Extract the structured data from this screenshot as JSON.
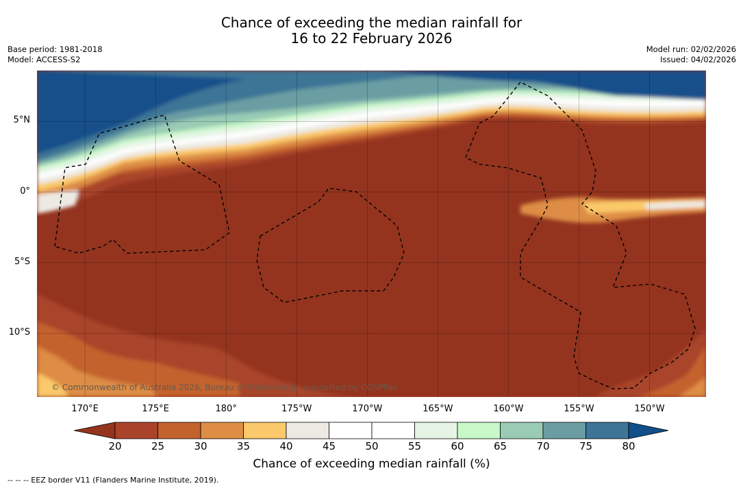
{
  "title": {
    "line1": "Chance of exceeding the median rainfall for",
    "line2": "16 to 22 February 2026"
  },
  "meta": {
    "base_period": "Base period: 1981-2018",
    "model": "Model: ACCESS-S2",
    "model_run": "Model run: 02/02/2026",
    "issued": "Issued: 04/02/2026"
  },
  "map": {
    "credit": "© Commonwealth of Australia 2026, Bureau of Meteorology, supported by COSPPac",
    "lon_ticks": [
      "170°E",
      "175°E",
      "180°",
      "175°W",
      "170°W",
      "165°W",
      "160°W",
      "155°W",
      "150°W"
    ],
    "lat_ticks": [
      "5°N",
      "0°",
      "5°S",
      "10°S"
    ],
    "lon_values": [
      170,
      175,
      180,
      185,
      190,
      195,
      200,
      205,
      210
    ],
    "lat_values": [
      5,
      0,
      -5,
      -10
    ],
    "lon_range": [
      166.6,
      214
    ],
    "lat_range": [
      -14.5,
      8.6
    ]
  },
  "colorbar": {
    "labels": [
      "20",
      "25",
      "30",
      "35",
      "40",
      "45",
      "50",
      "55",
      "60",
      "65",
      "70",
      "75",
      "80"
    ],
    "colors": [
      "#a9442a",
      "#c4622e",
      "#dd8d44",
      "#fbc96b",
      "#edeae4",
      "#ffffff",
      "#ffffff",
      "#e6f4e6",
      "#c8f8c8",
      "#99cbb5",
      "#6a9ea3",
      "#3e7496"
    ],
    "low_color": "#94341f",
    "high_color": "#124f8a",
    "title": "Chance of exceeding median rainfall (%)"
  },
  "footer": "--  --  -- EEZ border V11 (Flanders Marine Institute, 2019)."
}
